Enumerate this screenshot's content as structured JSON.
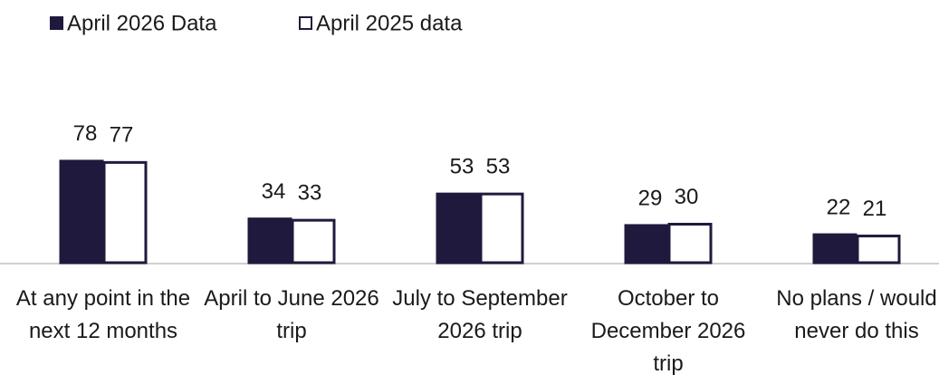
{
  "chart_data": {
    "type": "bar",
    "categories": [
      "At any point in the next 12 months",
      "April to June 2026 trip",
      "July to September 2026 trip",
      "October to December 2026 trip",
      "No plans / would never do this"
    ],
    "series": [
      {
        "name": "April 2026 Data",
        "color": "#1f1a3d",
        "values": [
          78,
          34,
          53,
          29,
          22
        ]
      },
      {
        "name": "April 2025 data",
        "color": "#ffffff",
        "values": [
          77,
          33,
          53,
          30,
          21
        ]
      }
    ]
  }
}
